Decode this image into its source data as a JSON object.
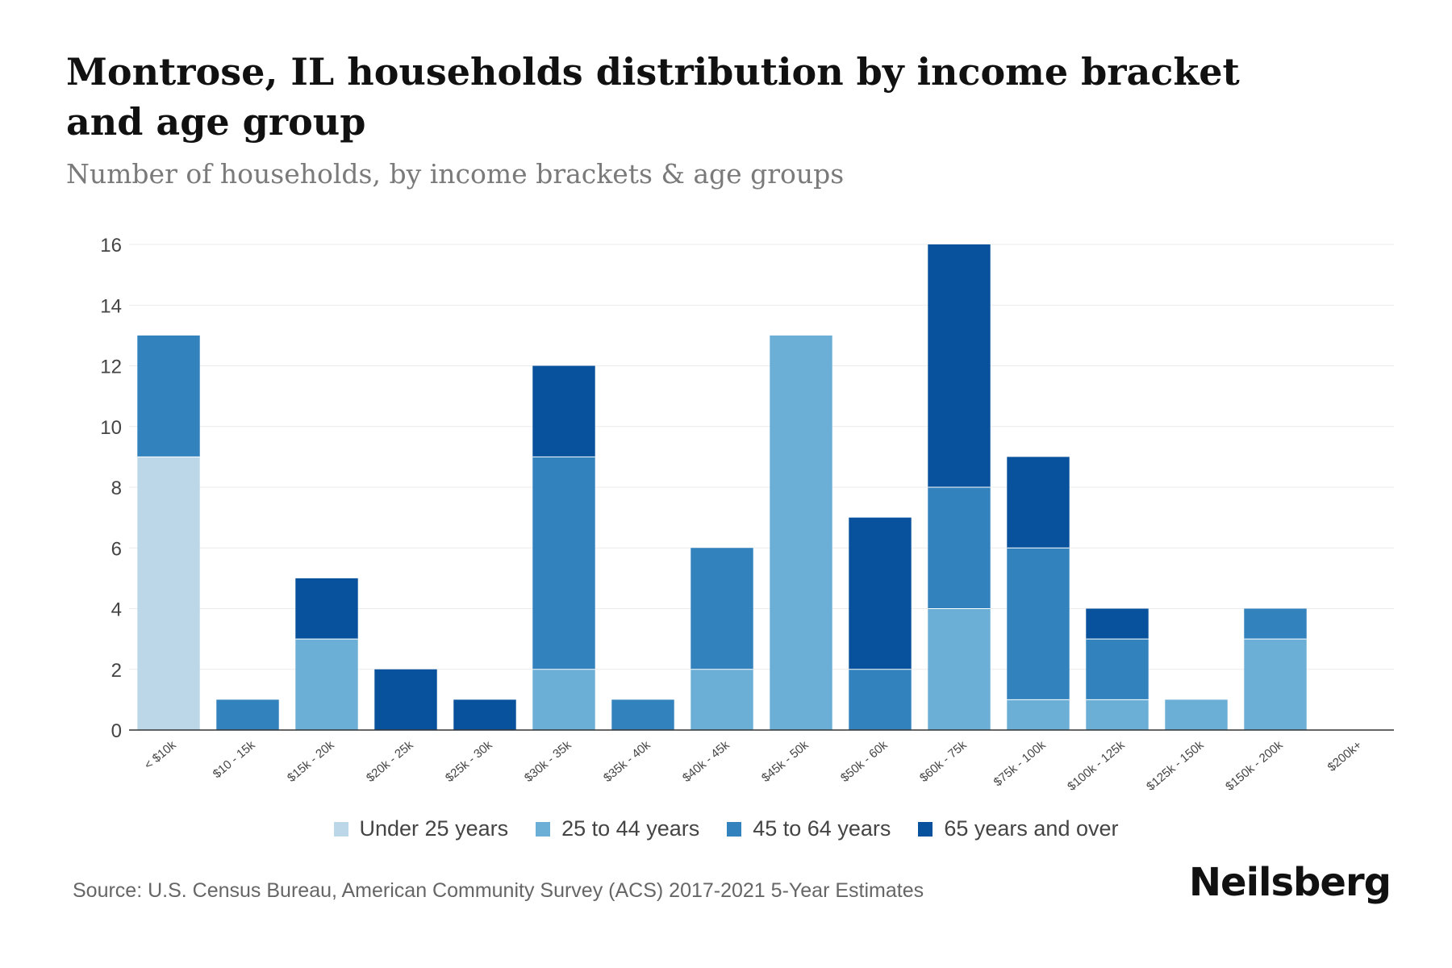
{
  "title": "Montrose, IL households distribution by income bracket and age group",
  "subtitle": "Number of households, by income brackets & age groups",
  "source": "Source: U.S. Census Bureau, American Community Survey (ACS) 2017-2021 5-Year Estimates",
  "brand": "Neilsberg",
  "chart_data": {
    "type": "bar",
    "stacked": true,
    "title": "Montrose, IL households distribution by income bracket and age group",
    "subtitle": "Number of households, by income brackets & age groups",
    "xlabel": "",
    "ylabel": "",
    "ylim": [
      0,
      16
    ],
    "yticks": [
      0,
      2,
      4,
      6,
      8,
      10,
      12,
      14,
      16
    ],
    "grid": true,
    "legend_position": "bottom",
    "categories": [
      "< $10k",
      "$10 - 15k",
      "$15k - 20k",
      "$20k - 25k",
      "$25k - 30k",
      "$30k - 35k",
      "$35k - 40k",
      "$40k - 45k",
      "$45k - 50k",
      "$50k - 60k",
      "$60k - 75k",
      "$75k - 100k",
      "$100k - 125k",
      "$125k - 150k",
      "$150k - 200k",
      "$200k+"
    ],
    "series": [
      {
        "name": "Under 25 years",
        "color": "#bcd8e8",
        "values": [
          9,
          0,
          0,
          0,
          0,
          0,
          0,
          0,
          0,
          0,
          0,
          0,
          0,
          0,
          0,
          0
        ]
      },
      {
        "name": "25 to 44 years",
        "color": "#6baed6",
        "values": [
          0,
          0,
          3,
          0,
          0,
          2,
          0,
          2,
          13,
          0,
          4,
          1,
          1,
          1,
          3,
          0
        ]
      },
      {
        "name": "45 to 64 years",
        "color": "#3182bd",
        "values": [
          4,
          1,
          0,
          0,
          0,
          7,
          1,
          4,
          0,
          2,
          4,
          5,
          2,
          0,
          1,
          0
        ]
      },
      {
        "name": "65 years and over",
        "color": "#08519c",
        "values": [
          0,
          0,
          2,
          2,
          1,
          3,
          0,
          0,
          0,
          5,
          8,
          3,
          1,
          0,
          0,
          0
        ]
      }
    ]
  }
}
